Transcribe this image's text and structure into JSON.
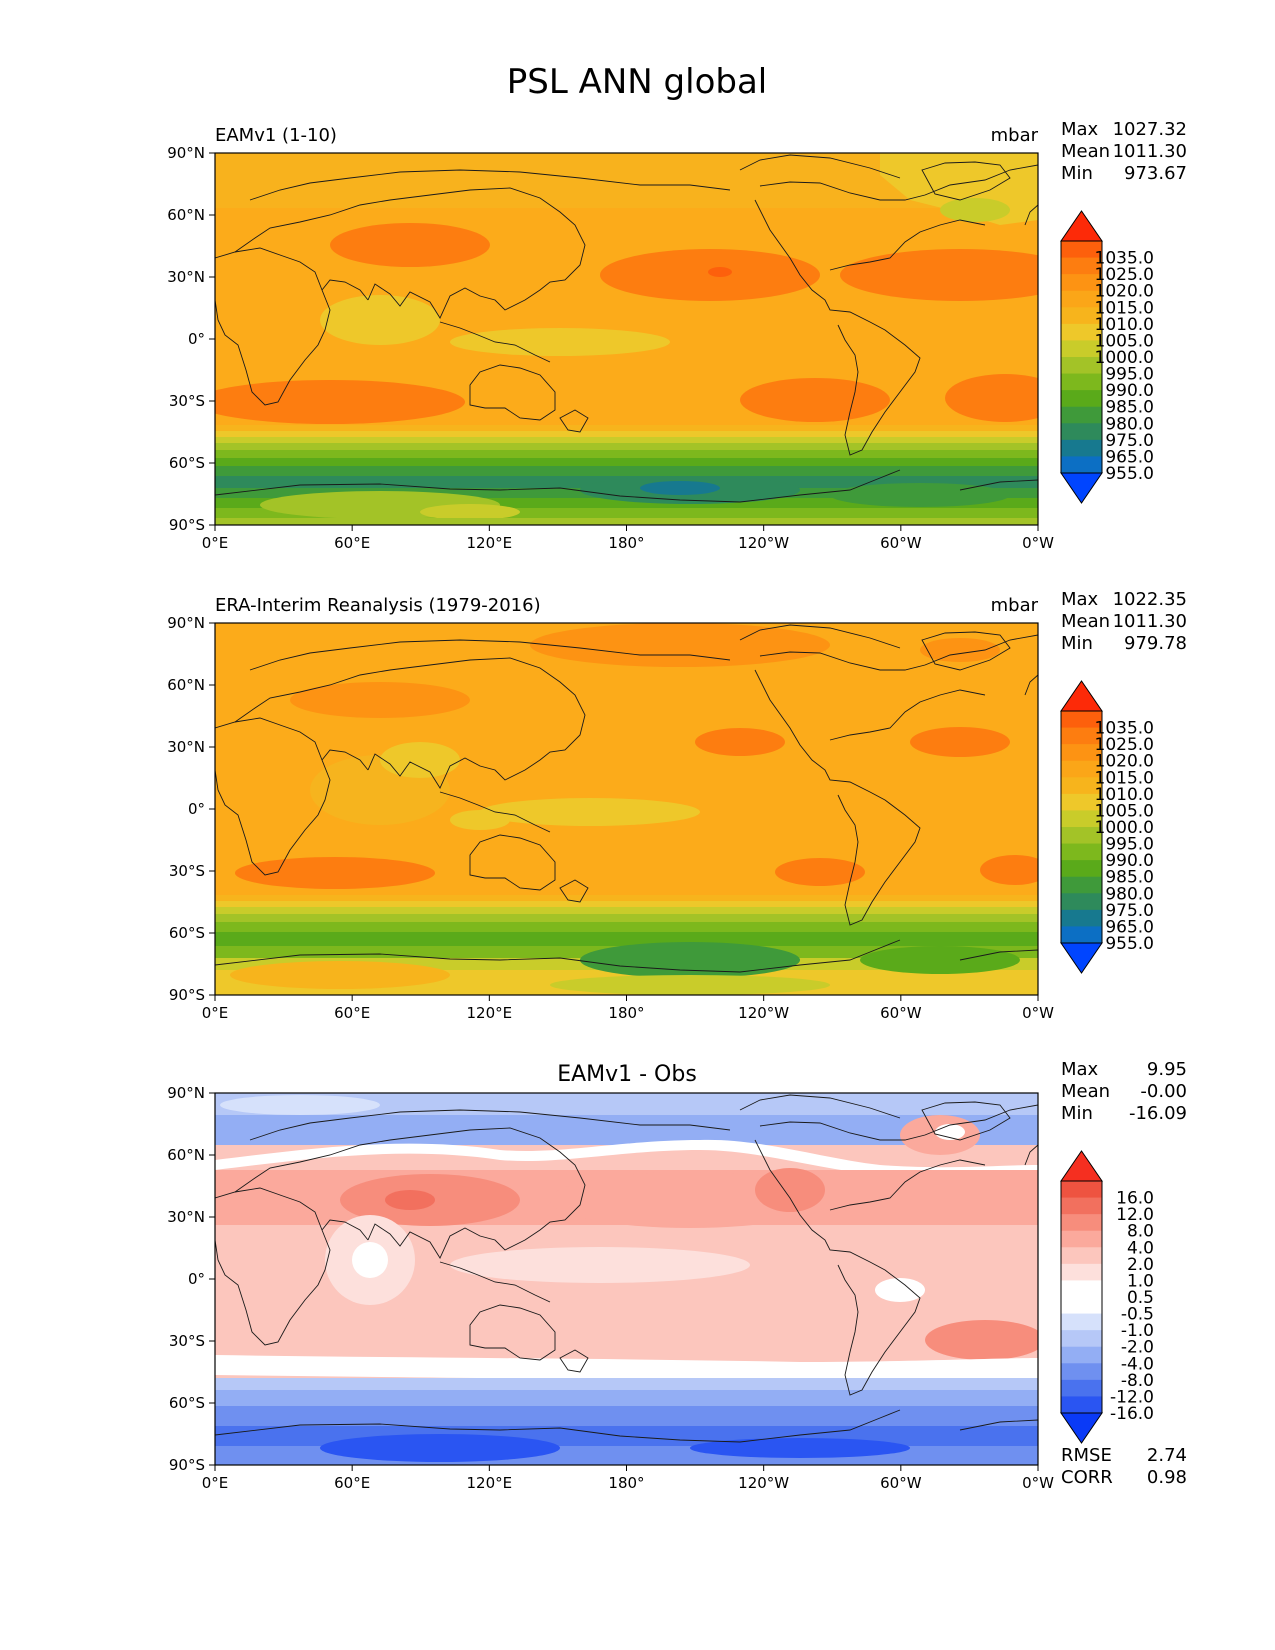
{
  "figure_title": "PSL ANN global",
  "colors": {
    "psl_scale": [
      "#0045ff",
      "#0c6fc4",
      "#17798f",
      "#2e8a5b",
      "#3f9a3a",
      "#5aaa1a",
      "#7db81d",
      "#a3c327",
      "#c9cc2a",
      "#eec82a",
      "#f7b41c",
      "#fba618",
      "#fd9313",
      "#fd7d10",
      "#fd600c",
      "#fd2a08"
    ],
    "diff_scale": [
      "#0a3af7",
      "#2a55f2",
      "#4a72ee",
      "#6f90f0",
      "#93aef4",
      "#b6c8f7",
      "#d6e1fb",
      "#ffffff",
      "#ffffff",
      "#fde0dc",
      "#fcc6bd",
      "#fba99c",
      "#f78d7c",
      "#f2705e",
      "#ee5340",
      "#f52f20"
    ],
    "coastline": "#1a1a1a"
  },
  "panels": [
    {
      "id": "model",
      "left_title": "EAMv1 (1-10)",
      "center_title": "",
      "units": "mbar",
      "stats": [
        {
          "label": "Max",
          "value": "1027.32"
        },
        {
          "label": "Mean",
          "value": "1011.30"
        },
        {
          "label": "Min",
          "value": "973.67"
        }
      ],
      "colorbar_ticks": [
        "1035.0",
        "1025.0",
        "1020.0",
        "1015.0",
        "1010.0",
        "1005.0",
        "1000.0",
        "995.0",
        "990.0",
        "985.0",
        "980.0",
        "975.0",
        "965.0",
        "955.0"
      ],
      "footer": []
    },
    {
      "id": "obs",
      "left_title": "ERA-Interim Reanalysis (1979-2016)",
      "center_title": "",
      "units": "mbar",
      "stats": [
        {
          "label": "Max",
          "value": "1022.35"
        },
        {
          "label": "Mean",
          "value": "1011.30"
        },
        {
          "label": "Min",
          "value": "979.78"
        }
      ],
      "colorbar_ticks": [
        "1035.0",
        "1025.0",
        "1020.0",
        "1015.0",
        "1010.0",
        "1005.0",
        "1000.0",
        "995.0",
        "990.0",
        "985.0",
        "980.0",
        "975.0",
        "965.0",
        "955.0"
      ],
      "footer": []
    },
    {
      "id": "diff",
      "left_title": "",
      "center_title": "EAMv1 - Obs",
      "units": "",
      "stats": [
        {
          "label": "Max",
          "value": "9.95"
        },
        {
          "label": "Mean",
          "value": "-0.00"
        },
        {
          "label": "Min",
          "value": "-16.09"
        }
      ],
      "colorbar_ticks": [
        "16.0",
        "12.0",
        "8.0",
        "4.0",
        "2.0",
        "1.0",
        "0.5",
        "-0.5",
        "-1.0",
        "-2.0",
        "-4.0",
        "-8.0",
        "-12.0",
        "-16.0"
      ],
      "footer": [
        {
          "label": "RMSE",
          "value": "2.74"
        },
        {
          "label": "CORR",
          "value": "0.98"
        }
      ]
    }
  ],
  "chart_data": [
    {
      "type": "heatmap",
      "title": "EAMv1 (1-10)",
      "units": "mbar",
      "x_ticks": [
        "0°E",
        "60°E",
        "120°E",
        "180°",
        "120°W",
        "60°W",
        "0°W"
      ],
      "y_ticks": [
        "90°N",
        "60°N",
        "30°N",
        "0°",
        "30°S",
        "60°S",
        "90°S"
      ],
      "xlim": [
        0,
        360
      ],
      "ylim": [
        -90,
        90
      ],
      "levels": [
        955,
        965,
        975,
        980,
        985,
        990,
        995,
        1000,
        1005,
        1010,
        1015,
        1020,
        1025,
        1035
      ],
      "stats": {
        "max": 1027.32,
        "mean": 1011.3,
        "min": 973.67
      },
      "zonal_mean_profile": [
        [
          90,
          1012
        ],
        [
          75,
          1010
        ],
        [
          60,
          1011
        ],
        [
          45,
          1018
        ],
        [
          35,
          1016
        ],
        [
          20,
          1013
        ],
        [
          5,
          1010
        ],
        [
          -10,
          1012
        ],
        [
          -25,
          1017
        ],
        [
          -35,
          1018
        ],
        [
          -45,
          1010
        ],
        [
          -55,
          995
        ],
        [
          -62,
          985
        ],
        [
          -68,
          982
        ],
        [
          -75,
          990
        ],
        [
          -85,
          1000
        ]
      ]
    },
    {
      "type": "heatmap",
      "title": "ERA-Interim Reanalysis (1979-2016)",
      "units": "mbar",
      "x_ticks": [
        "0°E",
        "60°E",
        "120°E",
        "180°",
        "120°W",
        "60°W",
        "0°W"
      ],
      "y_ticks": [
        "90°N",
        "60°N",
        "30°N",
        "0°",
        "30°S",
        "60°S",
        "90°S"
      ],
      "xlim": [
        0,
        360
      ],
      "ylim": [
        -90,
        90
      ],
      "levels": [
        955,
        965,
        975,
        980,
        985,
        990,
        995,
        1000,
        1005,
        1010,
        1015,
        1020,
        1025,
        1035
      ],
      "stats": {
        "max": 1022.35,
        "mean": 1011.3,
        "min": 979.78
      },
      "zonal_mean_profile": [
        [
          90,
          1015
        ],
        [
          75,
          1013
        ],
        [
          60,
          1014
        ],
        [
          45,
          1016
        ],
        [
          35,
          1016
        ],
        [
          20,
          1013
        ],
        [
          5,
          1009
        ],
        [
          -10,
          1012
        ],
        [
          -25,
          1016
        ],
        [
          -35,
          1017
        ],
        [
          -45,
          1012
        ],
        [
          -55,
          1000
        ],
        [
          -62,
          988
        ],
        [
          -68,
          986
        ],
        [
          -75,
          996
        ],
        [
          -85,
          1006
        ]
      ]
    },
    {
      "type": "heatmap",
      "title": "EAMv1 - Obs",
      "units": "",
      "x_ticks": [
        "0°E",
        "60°E",
        "120°E",
        "180°",
        "120°W",
        "60°W",
        "0°W"
      ],
      "y_ticks": [
        "90°N",
        "60°N",
        "30°N",
        "0°",
        "30°S",
        "60°S",
        "90°S"
      ],
      "xlim": [
        0,
        360
      ],
      "ylim": [
        -90,
        90
      ],
      "levels": [
        -16,
        -12,
        -8,
        -4,
        -2,
        -1,
        -0.5,
        0.5,
        1,
        2,
        4,
        8,
        12,
        16
      ],
      "stats": {
        "max": 9.95,
        "mean": -0.0,
        "min": -16.09,
        "rmse": 2.74,
        "corr": 0.98
      },
      "zonal_mean_profile": [
        [
          90,
          -3
        ],
        [
          75,
          -3
        ],
        [
          60,
          -2.5
        ],
        [
          52,
          0
        ],
        [
          45,
          2.5
        ],
        [
          35,
          3
        ],
        [
          20,
          2
        ],
        [
          5,
          0.8
        ],
        [
          -10,
          2
        ],
        [
          -25,
          2.5
        ],
        [
          -35,
          2
        ],
        [
          -42,
          0
        ],
        [
          -50,
          -3
        ],
        [
          -60,
          -5
        ],
        [
          -70,
          -7
        ],
        [
          -85,
          -6
        ]
      ]
    }
  ]
}
